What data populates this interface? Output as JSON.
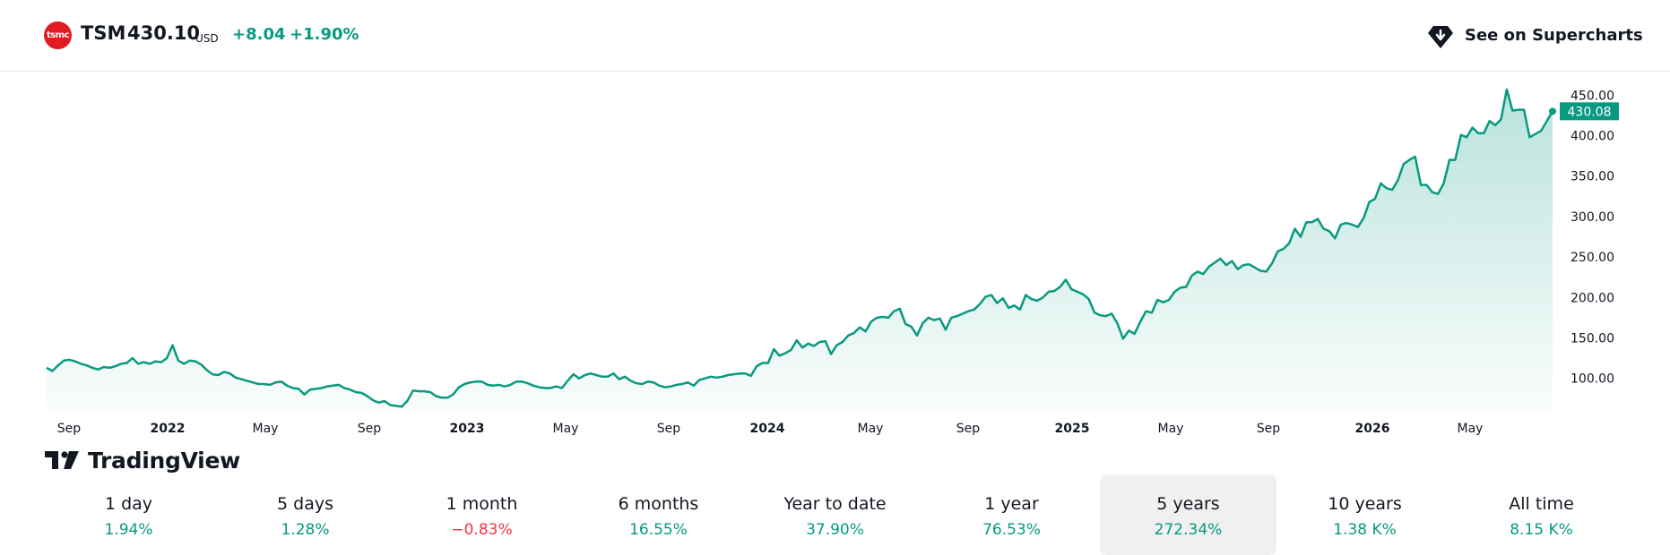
{
  "header": {
    "logo_text": "tsmc",
    "symbol": "TSM",
    "price": "430.10",
    "currency": "USD",
    "change": "+8.04",
    "change_percent": "+1.90%",
    "supercharts_label": "See on Supercharts"
  },
  "brand": {
    "name": "TradingView"
  },
  "colors": {
    "line": "#089981",
    "positive": "#089981",
    "negative": "#f23645",
    "logo": "#e11b22"
  },
  "chart_data": {
    "type": "area",
    "x_tick_labels": [
      "Sep",
      "2022",
      "May",
      "Sep",
      "2023",
      "May",
      "Sep",
      "2024",
      "May",
      "Sep",
      "2025",
      "May",
      "Sep",
      "2026",
      "May"
    ],
    "y_tick_labels": [
      "450.00",
      "400.00",
      "350.00",
      "300.00",
      "250.00",
      "200.00",
      "150.00",
      "100.00"
    ],
    "ylim": [
      62,
      457
    ],
    "last_value_label": "430.08",
    "series": [
      {
        "values": [
          113,
          109,
          116,
          122,
          123,
          121,
          118,
          116,
          113,
          111,
          114,
          113,
          115,
          118,
          119,
          125,
          118,
          120,
          118,
          121,
          120,
          125,
          141,
          122,
          118,
          122,
          121,
          117,
          110,
          105,
          104,
          108,
          106,
          101,
          99,
          97,
          95,
          93,
          93,
          92,
          95,
          96,
          91,
          88,
          87,
          80,
          86,
          87,
          88,
          90,
          91,
          92,
          88,
          86,
          83,
          82,
          78,
          73,
          70,
          72,
          67,
          66,
          65,
          72,
          85,
          84,
          84,
          83,
          78,
          76,
          76,
          80,
          89,
          93,
          95,
          96,
          96,
          92,
          91,
          92,
          90,
          92,
          96,
          96,
          94,
          91,
          89,
          88,
          88,
          90,
          88,
          97,
          105,
          100,
          104,
          106,
          104,
          102,
          102,
          106,
          99,
          102,
          97,
          94,
          93,
          96,
          95,
          91,
          89,
          90,
          92,
          93,
          95,
          91,
          98,
          100,
          102,
          101,
          102,
          104,
          105,
          106,
          106,
          103,
          115,
          119,
          119,
          136,
          128,
          131,
          135,
          147,
          138,
          143,
          140,
          145,
          146,
          130,
          141,
          145,
          153,
          156,
          163,
          158,
          170,
          175,
          176,
          175,
          183,
          186,
          167,
          164,
          153,
          168,
          175,
          172,
          174,
          160,
          175,
          177,
          180,
          183,
          185,
          192,
          201,
          203,
          193,
          199,
          187,
          190,
          185,
          203,
          198,
          196,
          200,
          207,
          208,
          213,
          222,
          210,
          207,
          204,
          198,
          181,
          178,
          177,
          180,
          168,
          149,
          159,
          155,
          170,
          183,
          181,
          197,
          194,
          197,
          207,
          212,
          213,
          227,
          232,
          229,
          238,
          243,
          248,
          240,
          245,
          235,
          240,
          241,
          237,
          233,
          232,
          242,
          257,
          260,
          267,
          285,
          275,
          293,
          293,
          297,
          285,
          282,
          273,
          290,
          292,
          290,
          287,
          298,
          318,
          322,
          341,
          335,
          333,
          345,
          365,
          370,
          374,
          339,
          339,
          330,
          328,
          341,
          370,
          370,
          401,
          398,
          410,
          403,
          403,
          418,
          413,
          420,
          457,
          431,
          432,
          432,
          398,
          402,
          406,
          418,
          430.08
        ]
      }
    ],
    "grid": false,
    "legend": "none"
  },
  "ranges": [
    {
      "label": "1 day",
      "value": "1.94%",
      "sign": "pos",
      "selected": false
    },
    {
      "label": "5 days",
      "value": "1.28%",
      "sign": "pos",
      "selected": false
    },
    {
      "label": "1 month",
      "value": "−0.83%",
      "sign": "neg",
      "selected": false
    },
    {
      "label": "6 months",
      "value": "16.55%",
      "sign": "pos",
      "selected": false
    },
    {
      "label": "Year to date",
      "value": "37.90%",
      "sign": "pos",
      "selected": false
    },
    {
      "label": "1 year",
      "value": "76.53%",
      "sign": "pos",
      "selected": false
    },
    {
      "label": "5 years",
      "value": "272.34%",
      "sign": "pos",
      "selected": true
    },
    {
      "label": "10 years",
      "value": "1.38 K%",
      "sign": "pos",
      "selected": false
    },
    {
      "label": "All time",
      "value": "8.15 K%",
      "sign": "pos",
      "selected": false
    }
  ]
}
